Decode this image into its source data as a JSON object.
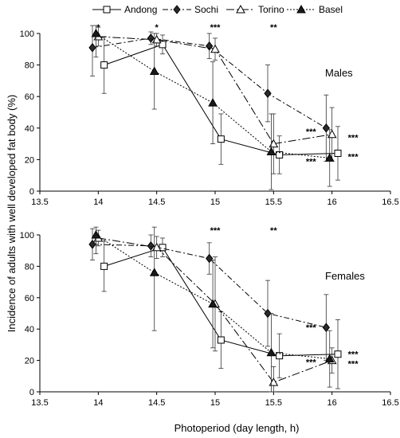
{
  "chart_data": {
    "type": "line",
    "xlabel": "Photoperiod (day length, h)",
    "ylabel": "Incidence of adults with well developed fat body (%)",
    "xlim": [
      13.5,
      16.5
    ],
    "ylim": [
      0,
      100
    ],
    "x_ticks": [
      "13.5",
      "14",
      "14.5",
      "15",
      "15.5",
      "16",
      "16.5"
    ],
    "y_ticks": [
      "0",
      "20",
      "40",
      "60",
      "80",
      "100"
    ],
    "x_tick_values": [
      13.5,
      14,
      14.5,
      15,
      15.5,
      16,
      16.5
    ],
    "y_tick_values": [
      0,
      20,
      40,
      60,
      80,
      100
    ],
    "legend_position": "top",
    "series_styles": [
      {
        "name": "Andong",
        "marker": "square-open",
        "line": "solid",
        "color": "#000000"
      },
      {
        "name": "Sochi",
        "marker": "diamond-filled",
        "line": "dashdot",
        "color": "#000000"
      },
      {
        "name": "Torino",
        "marker": "triangle-open",
        "line": "dashdot-long",
        "color": "#000000"
      },
      {
        "name": "Basel",
        "marker": "triangle-filled",
        "line": "dotted",
        "color": "#000000"
      }
    ],
    "panels": [
      {
        "label": "Males",
        "series": [
          {
            "name": "Andong",
            "points": [
              [
                14.05,
                80,
                18
              ],
              [
                14.55,
                93,
                6
              ],
              [
                15.05,
                33,
                16
              ],
              [
                15.55,
                23,
                12
              ],
              [
                16.05,
                24,
                17
              ]
            ]
          },
          {
            "name": "Sochi",
            "points": [
              [
                13.95,
                91,
                18
              ],
              [
                14.45,
                97,
                4
              ],
              [
                14.95,
                92,
                8
              ],
              [
                15.45,
                62,
                18
              ],
              [
                15.95,
                40,
                21
              ]
            ]
          },
          {
            "name": "Torino",
            "points": [
              [
                14.0,
                98,
                6
              ],
              [
                14.5,
                96,
                4
              ],
              [
                15.0,
                90,
                7
              ],
              [
                15.5,
                30,
                19
              ],
              [
                16.0,
                36,
                17
              ]
            ]
          },
          {
            "name": "Basel",
            "points": [
              [
                13.98,
                100,
                15
              ],
              [
                14.48,
                76,
                24
              ],
              [
                14.98,
                56,
                26
              ],
              [
                15.48,
                25,
                24
              ],
              [
                15.98,
                21,
                18
              ]
            ]
          }
        ],
        "annotations": [
          {
            "text": "*",
            "x": 14.0,
            "y": 104
          },
          {
            "text": "*",
            "x": 14.5,
            "y": 104
          },
          {
            "text": "***",
            "x": 15.0,
            "y": 104
          },
          {
            "text": "**",
            "x": 15.5,
            "y": 104
          },
          {
            "text": "***",
            "x": 15.82,
            "y": 38
          },
          {
            "text": "***",
            "x": 16.18,
            "y": 34
          },
          {
            "text": "***",
            "x": 16.18,
            "y": 22
          },
          {
            "text": "***",
            "x": 15.82,
            "y": 19
          }
        ]
      },
      {
        "label": "Females",
        "series": [
          {
            "name": "Andong",
            "points": [
              [
                14.05,
                80,
                16
              ],
              [
                14.55,
                92,
                6
              ],
              [
                15.05,
                33,
                18
              ],
              [
                15.55,
                23,
                14
              ],
              [
                16.05,
                24,
                22
              ]
            ]
          },
          {
            "name": "Sochi",
            "points": [
              [
                13.95,
                94,
                10
              ],
              [
                14.45,
                93,
                7
              ],
              [
                14.95,
                85,
                10
              ],
              [
                15.45,
                50,
                21
              ],
              [
                15.95,
                41,
                21
              ]
            ]
          },
          {
            "name": "Torino",
            "points": [
              [
                14.0,
                98,
                5
              ],
              [
                14.5,
                92,
                7
              ],
              [
                15.0,
                56,
                30
              ],
              [
                15.5,
                6,
                10
              ],
              [
                16.0,
                20,
                8
              ]
            ]
          },
          {
            "name": "Basel",
            "points": [
              [
                13.98,
                100,
                12
              ],
              [
                14.48,
                76,
                37
              ],
              [
                14.98,
                56,
                28
              ],
              [
                15.48,
                25,
                25
              ],
              [
                15.98,
                21,
                18
              ]
            ]
          }
        ],
        "annotations": [
          {
            "text": "***",
            "x": 15.0,
            "y": 103
          },
          {
            "text": "**",
            "x": 15.5,
            "y": 103
          },
          {
            "text": "***",
            "x": 15.82,
            "y": 41
          },
          {
            "text": "***",
            "x": 16.18,
            "y": 24
          },
          {
            "text": "***",
            "x": 15.82,
            "y": 19
          },
          {
            "text": "***",
            "x": 16.18,
            "y": 18
          }
        ]
      }
    ]
  }
}
